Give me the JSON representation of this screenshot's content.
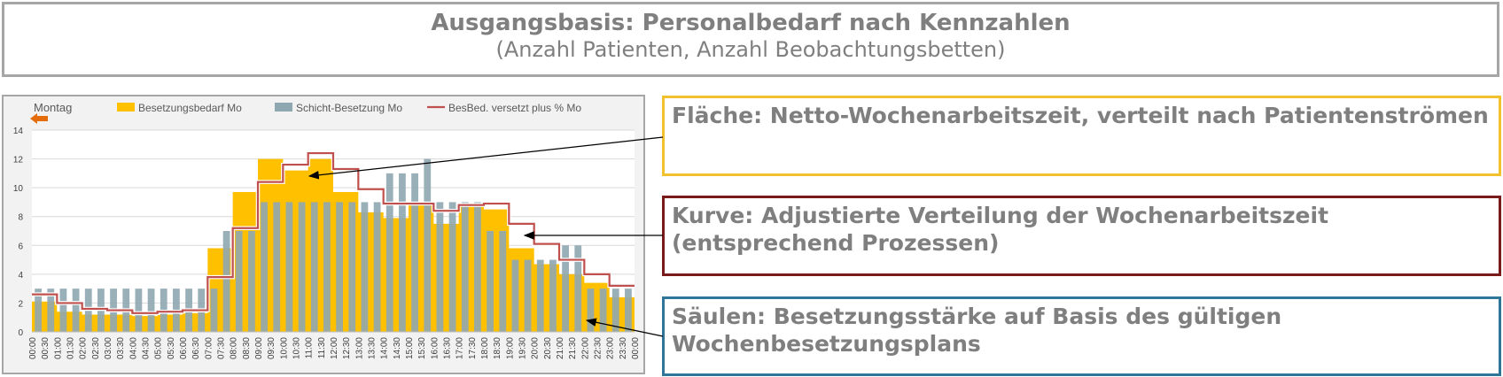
{
  "header": {
    "title": "Ausgangsbasis: Personalbedarf nach Kennzahlen",
    "subtitle": "(Anzahl Patienten, Anzahl Beobachtungsbetten)"
  },
  "callouts": [
    {
      "text": "Fläche: Netto-Wochenarbeitszeit, verteilt nach Patientenströmen",
      "color": "#f2c12e"
    },
    {
      "text": "Kurve: Adjustierte Verteilung der Wochenarbeitszeit (entsprechend Prozessen)",
      "color": "#7b1a1a"
    },
    {
      "text": "Säulen: Besetzungsstärke auf Basis des gültigen Wochenbesetzungsplans",
      "color": "#2e7598"
    }
  ],
  "chart_data": {
    "type": "bar",
    "title": "Montag",
    "ylim": [
      0,
      14
    ],
    "yticks": [
      0,
      2,
      4,
      6,
      8,
      10,
      12,
      14
    ],
    "grid": true,
    "legend_position": "top",
    "x": [
      "00:00",
      "00:30",
      "01:00",
      "01:30",
      "02:00",
      "02:30",
      "03:00",
      "03:30",
      "04:00",
      "04:30",
      "05:00",
      "05:30",
      "06:00",
      "06:30",
      "07:00",
      "07:30",
      "08:00",
      "08:30",
      "09:00",
      "09:30",
      "10:00",
      "10:30",
      "11:00",
      "11:30",
      "12:00",
      "12:30",
      "13:00",
      "13:30",
      "14:00",
      "14:30",
      "15:00",
      "15:30",
      "16:00",
      "16:30",
      "17:00",
      "17:30",
      "18:00",
      "18:30",
      "19:00",
      "19:30",
      "20:00",
      "20:30",
      "21:00",
      "21:30",
      "22:00",
      "22:30",
      "23:00",
      "23:30",
      "00:00"
    ],
    "series": [
      {
        "name": "Besetzungsbedarf Mo",
        "kind": "area",
        "color": "#ffc000",
        "values": [
          2.1,
          2.1,
          1.4,
          1.4,
          1.2,
          1.2,
          1.2,
          1.2,
          1.1,
          1.1,
          1.2,
          1.2,
          1.3,
          1.3,
          5.8,
          5.8,
          9.7,
          9.7,
          12.0,
          12.0,
          11.2,
          11.2,
          12.0,
          12.0,
          9.7,
          9.7,
          8.3,
          8.3,
          7.9,
          7.9,
          8.8,
          8.8,
          7.5,
          7.5,
          8.8,
          8.8,
          8.5,
          8.5,
          5.8,
          5.8,
          4.7,
          4.7,
          4.0,
          4.0,
          3.4,
          3.4,
          2.4,
          2.4,
          2.4
        ]
      },
      {
        "name": "Schicht-Besetzung Mo",
        "kind": "bar",
        "color": "#8fa7b1",
        "values": [
          3,
          3,
          3,
          3,
          3,
          3,
          3,
          3,
          3,
          3,
          3,
          3,
          3,
          3,
          3,
          7,
          7,
          7,
          9,
          9,
          9,
          9,
          9,
          9,
          9,
          9,
          9,
          9,
          11,
          11,
          11,
          12,
          9,
          9,
          9,
          9,
          7,
          7,
          5,
          5,
          5,
          5,
          6,
          6,
          3,
          3,
          3,
          3,
          3
        ]
      },
      {
        "name": "BesBed. versetzt plus % Mo",
        "kind": "line",
        "color": "#c0504d",
        "values": [
          2.6,
          2.6,
          2.0,
          2.0,
          1.6,
          1.6,
          1.5,
          1.5,
          1.3,
          1.3,
          1.4,
          1.4,
          1.5,
          1.5,
          3.8,
          3.8,
          7.2,
          7.2,
          10.4,
          10.4,
          11.6,
          11.6,
          12.4,
          12.4,
          11.3,
          11.3,
          9.9,
          9.9,
          8.9,
          8.9,
          8.9,
          8.9,
          8.4,
          8.4,
          8.8,
          8.8,
          8.9,
          8.9,
          7.5,
          7.5,
          6.1,
          6.1,
          5.0,
          5.0,
          4.0,
          4.0,
          3.2,
          3.2,
          3.2
        ]
      }
    ]
  }
}
